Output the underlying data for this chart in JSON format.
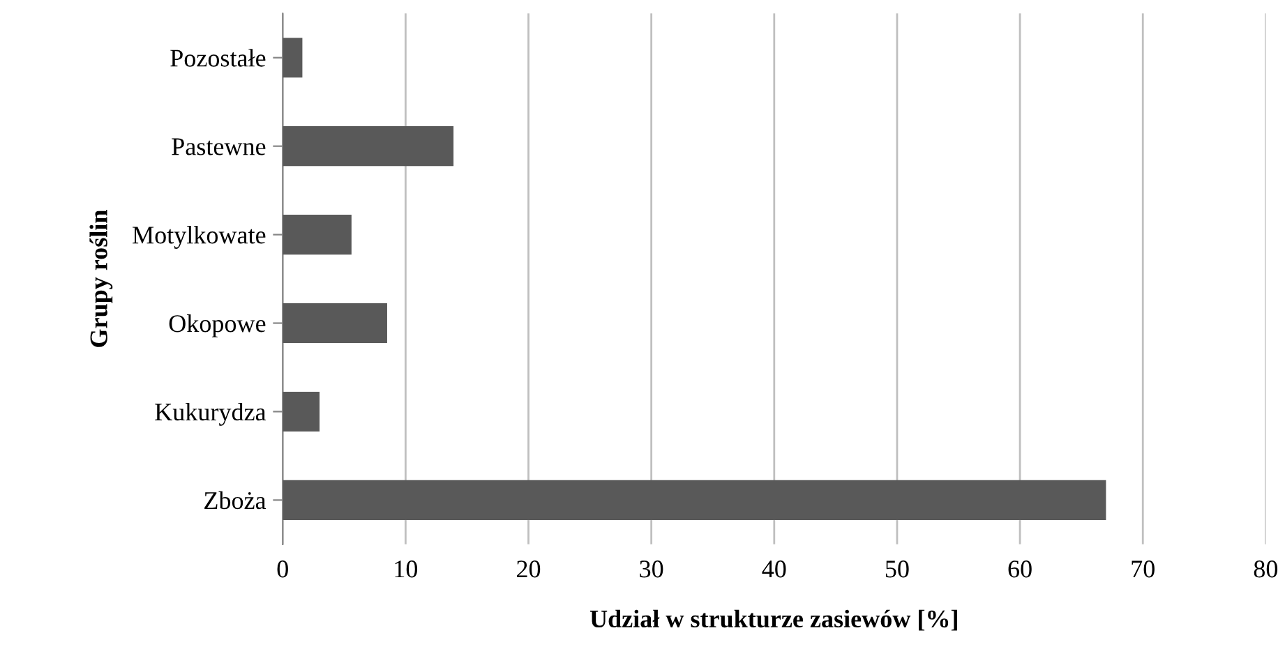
{
  "chart_data": {
    "type": "bar",
    "orientation": "horizontal",
    "xlabel": "Udział w strukturze zasiewów [%]",
    "ylabel": "Grupy roślin",
    "categories": [
      "Pozostałe",
      "Pastewne",
      "Motylkowate",
      "Okopowe",
      "Kukurydza",
      "Zboża"
    ],
    "values": [
      1.6,
      13.9,
      5.6,
      8.5,
      3.0,
      67.0
    ],
    "color": "#595959",
    "xlim": [
      0,
      80
    ],
    "xticks": [
      0,
      10,
      20,
      30,
      40,
      50,
      60,
      70,
      80
    ],
    "grid": "x"
  }
}
